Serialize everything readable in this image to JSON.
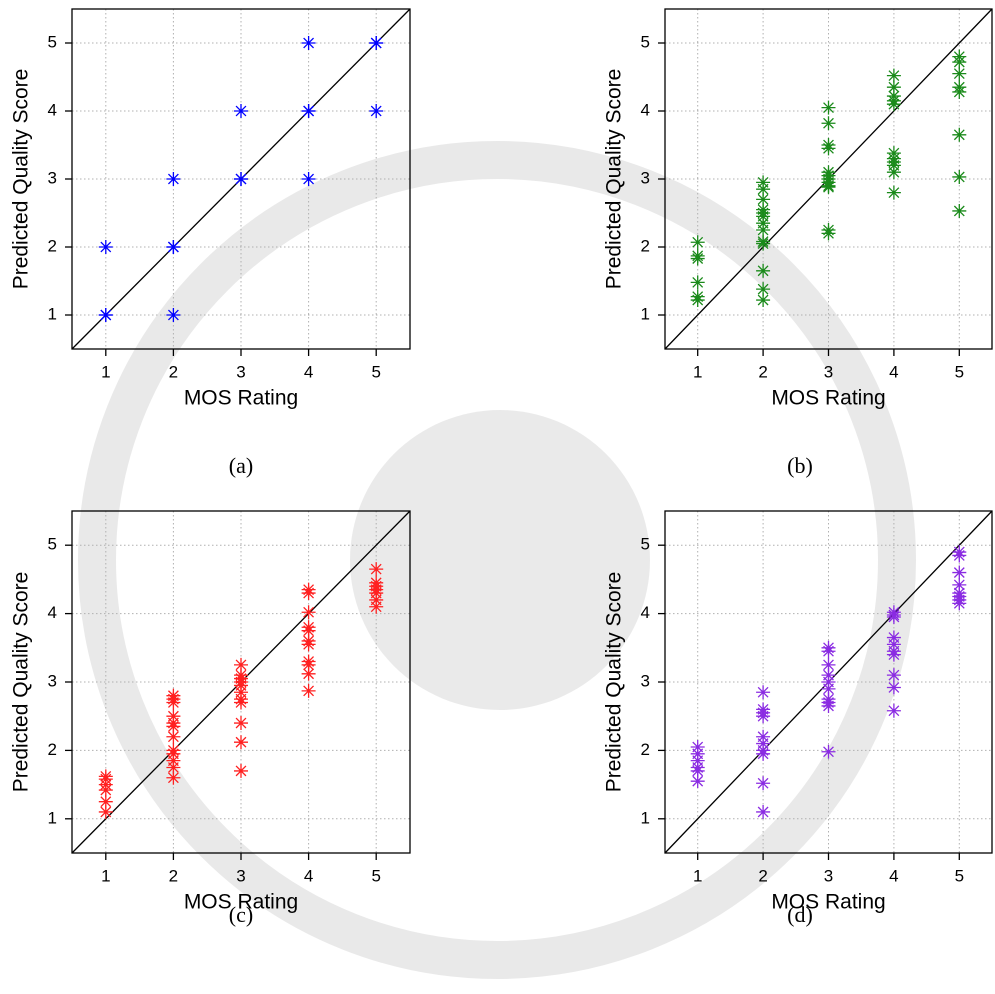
{
  "chart_data": [
    {
      "type": "scatter",
      "caption": "(a)",
      "xlabel": "MOS Rating",
      "ylabel": "Predicted Quality Score",
      "color": "#0000ff",
      "x": [
        1,
        1,
        1,
        2,
        2,
        2,
        2,
        3,
        3,
        3,
        4,
        4,
        4,
        4,
        5,
        5,
        5
      ],
      "y": [
        1,
        1,
        2,
        1,
        2,
        2,
        3,
        3,
        3,
        4,
        3,
        4,
        4,
        5,
        4,
        5,
        5
      ],
      "xlim": [
        0.5,
        5.5
      ],
      "ylim": [
        0.5,
        5.5
      ],
      "xticks": [
        1,
        2,
        3,
        4,
        5
      ],
      "yticks": [
        1,
        2,
        3,
        4,
        5
      ],
      "grid": true
    },
    {
      "type": "scatter",
      "caption": "(b)",
      "xlabel": "MOS Rating",
      "ylabel": "Predicted Quality Score",
      "color": "#1a8a1a",
      "x": [
        1,
        1,
        1,
        1,
        1,
        1,
        2,
        2,
        2,
        2,
        2,
        2,
        2,
        2,
        2,
        2,
        2,
        2,
        2,
        3,
        3,
        3,
        3,
        3,
        3,
        3,
        3,
        3,
        3,
        3,
        3,
        4,
        4,
        4,
        4,
        4,
        4,
        4,
        4,
        4,
        4,
        4,
        5,
        5,
        5,
        5,
        5,
        5,
        5,
        5
      ],
      "y": [
        2.07,
        1.87,
        1.83,
        1.48,
        1.27,
        1.22,
        2.95,
        2.85,
        2.7,
        2.55,
        2.5,
        2.45,
        2.35,
        2.25,
        2.08,
        2.05,
        1.65,
        1.38,
        1.22,
        4.05,
        3.82,
        3.5,
        3.45,
        3.1,
        3.05,
        3.0,
        2.95,
        2.9,
        2.88,
        2.25,
        2.2,
        4.52,
        4.35,
        4.22,
        4.15,
        4.1,
        3.38,
        3.3,
        3.25,
        3.2,
        3.1,
        2.8,
        4.8,
        4.72,
        4.55,
        4.35,
        4.28,
        3.65,
        3.03,
        2.53
      ],
      "xlim": [
        0.5,
        5.5
      ],
      "ylim": [
        0.5,
        5.5
      ],
      "xticks": [
        1,
        2,
        3,
        4,
        5
      ],
      "yticks": [
        1,
        2,
        3,
        4,
        5
      ],
      "grid": true
    },
    {
      "type": "scatter",
      "caption": "(c)",
      "xlabel": "MOS Rating",
      "ylabel": "Predicted Quality Score",
      "color": "#ff2020",
      "x": [
        1,
        1,
        1,
        1,
        1,
        1,
        2,
        2,
        2,
        2,
        2,
        2,
        2,
        2,
        2,
        2,
        2,
        2,
        3,
        3,
        3,
        3,
        3,
        3,
        3,
        3,
        3,
        3,
        3,
        4,
        4,
        4,
        4,
        4,
        4,
        4,
        4,
        4,
        4,
        4,
        5,
        5,
        5,
        5,
        5,
        5,
        5
      ],
      "y": [
        1.62,
        1.58,
        1.5,
        1.42,
        1.25,
        1.1,
        2.8,
        2.75,
        2.7,
        2.5,
        2.4,
        2.35,
        2.2,
        2.0,
        1.95,
        1.85,
        1.75,
        1.6,
        3.25,
        3.1,
        3.05,
        3.0,
        2.95,
        2.85,
        2.75,
        2.7,
        2.4,
        2.12,
        1.7,
        4.35,
        4.3,
        4.02,
        3.8,
        3.75,
        3.6,
        3.55,
        3.3,
        3.25,
        3.12,
        2.87,
        4.65,
        4.45,
        4.4,
        4.35,
        4.3,
        4.2,
        4.1
      ],
      "xlim": [
        0.5,
        5.5
      ],
      "ylim": [
        0.5,
        5.5
      ],
      "xticks": [
        1,
        2,
        3,
        4,
        5
      ],
      "yticks": [
        1,
        2,
        3,
        4,
        5
      ],
      "grid": true
    },
    {
      "type": "scatter",
      "caption": "(d)",
      "xlabel": "MOS Rating",
      "ylabel": "Predicted Quality Score",
      "color": "#8a2be2",
      "x": [
        1,
        1,
        1,
        1,
        1,
        1,
        2,
        2,
        2,
        2,
        2,
        2,
        2,
        2,
        2,
        2,
        3,
        3,
        3,
        3,
        3,
        3,
        3,
        3,
        3,
        3,
        4,
        4,
        4,
        4,
        4,
        4,
        4,
        4,
        4,
        4,
        5,
        5,
        5,
        5,
        5,
        5,
        5,
        5
      ],
      "y": [
        2.05,
        1.95,
        1.85,
        1.75,
        1.7,
        1.55,
        2.85,
        2.6,
        2.55,
        2.5,
        2.2,
        2.1,
        2.0,
        1.95,
        1.52,
        1.1,
        3.5,
        3.45,
        3.25,
        3.1,
        3.0,
        2.9,
        2.75,
        2.7,
        2.65,
        1.98,
        4.02,
        3.98,
        3.95,
        3.65,
        3.55,
        3.45,
        3.4,
        3.1,
        2.92,
        2.58,
        4.9,
        4.85,
        4.6,
        4.42,
        4.3,
        4.25,
        4.2,
        4.15
      ],
      "xlim": [
        0.5,
        5.5
      ],
      "ylim": [
        0.5,
        5.5
      ],
      "xticks": [
        1,
        2,
        3,
        4,
        5
      ],
      "yticks": [
        1,
        2,
        3,
        4,
        5
      ],
      "grid": true
    }
  ]
}
